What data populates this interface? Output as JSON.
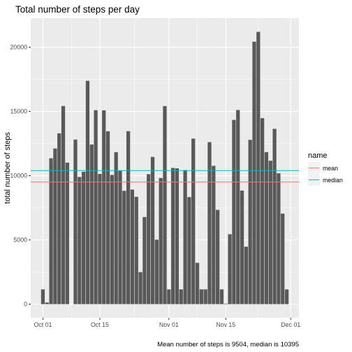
{
  "chart_data": {
    "type": "bar",
    "title": "Total number of steps per day",
    "xlabel": "",
    "ylabel": "total number of steps",
    "caption": "Mean number of steps is 9504, median is 10395",
    "start_date": "2012-10-01",
    "xlim_dates": [
      "2012-09-28",
      "2012-12-03"
    ],
    "ylim": [
      -1060,
      22260
    ],
    "x_ticks": [
      {
        "date": "2012-10-01",
        "label": "Oct 01"
      },
      {
        "date": "2012-10-15",
        "label": "Oct 15"
      },
      {
        "date": "2012-11-01",
        "label": "Nov 01"
      },
      {
        "date": "2012-11-15",
        "label": "Nov 15"
      },
      {
        "date": "2012-12-01",
        "label": "Dec 01"
      }
    ],
    "y_ticks": [
      {
        "value": 0,
        "label": "0"
      },
      {
        "value": 5000,
        "label": "5000"
      },
      {
        "value": 10000,
        "label": "10000"
      },
      {
        "value": 15000,
        "label": "15000"
      },
      {
        "value": 20000,
        "label": "20000"
      }
    ],
    "bar_color": "#595959",
    "values": [
      1150,
      126,
      11352,
      12116,
      13294,
      15420,
      11015,
      0,
      12811,
      9900,
      10304,
      17382,
      12426,
      15098,
      10139,
      15084,
      13452,
      10056,
      11829,
      10395,
      8821,
      13460,
      8918,
      8355,
      2492,
      6778,
      10119,
      11458,
      5018,
      9819,
      15414,
      1150,
      10600,
      10571,
      1150,
      10439,
      8334,
      12883,
      3219,
      1150,
      1150,
      12608,
      10765,
      7336,
      1150,
      41,
      5441,
      14339,
      15110,
      8841,
      4472,
      12787,
      20427,
      21194,
      14478,
      11834,
      11162,
      13646,
      10183,
      7047,
      1150
    ],
    "hlines": [
      {
        "name": "mean",
        "value": 9504,
        "color": "#F8766D"
      },
      {
        "name": "median",
        "value": 10395,
        "color": "#00BFC4"
      }
    ],
    "legend": {
      "title": "name",
      "placement": "right",
      "items": [
        {
          "label": "mean",
          "color": "#F8766D"
        },
        {
          "label": "median",
          "color": "#00BFC4"
        }
      ]
    },
    "grid": true,
    "panel_background": "#EBEBEB"
  }
}
